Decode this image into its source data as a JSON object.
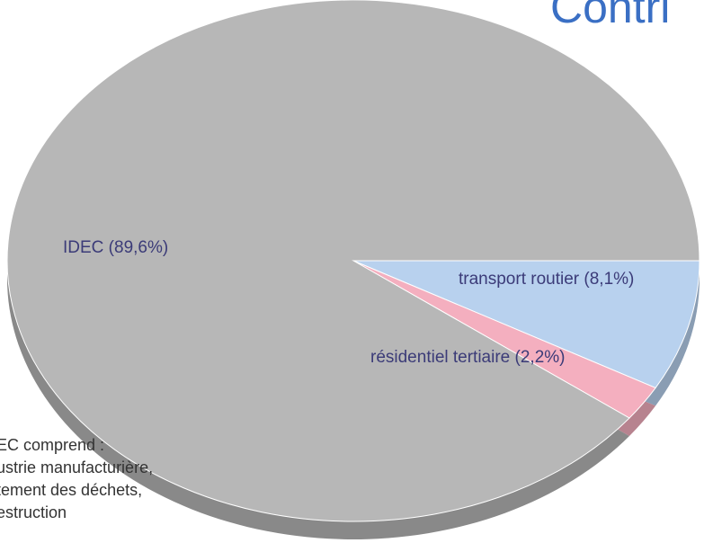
{
  "chart_data": {
    "type": "pie",
    "title": "Contri",
    "values": [
      8.1,
      2.2,
      89.6
    ],
    "value_labels": [
      "transport routier (8,1%)",
      "résidentiel tertiaire (2,2%)",
      "IDEC (89,6%)"
    ],
    "colors": [
      "#b8d1ee",
      "#f4afbf",
      "#b7b7b7"
    ],
    "annotation": [
      "EC comprend :",
      "ustrie manufacturière,",
      "tement des déchets,",
      "estruction"
    ]
  }
}
